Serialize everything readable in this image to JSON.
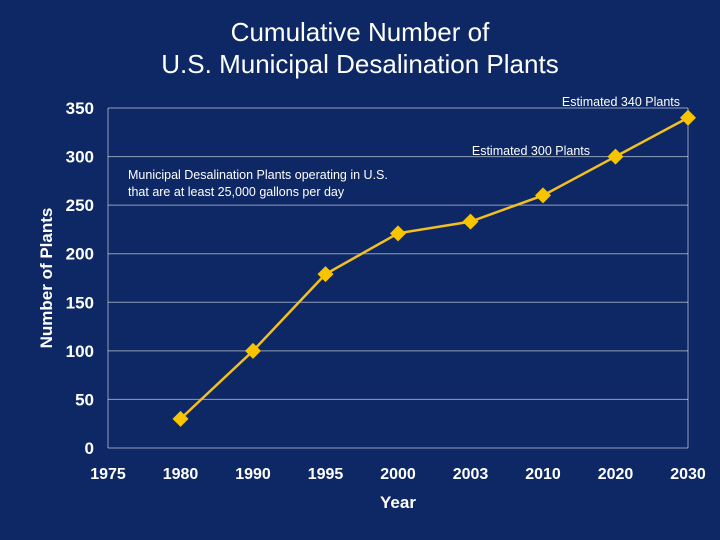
{
  "chart_data": {
    "type": "line",
    "title_lines": [
      "Cumulative Number of",
      "U.S. Municipal Desalination Plants"
    ],
    "xlabel": "Year",
    "ylabel": "Number of Plants",
    "ylim": [
      0,
      350
    ],
    "yticks": [
      "0",
      "50",
      "100",
      "150",
      "200",
      "250",
      "300",
      "350"
    ],
    "categories": [
      "1975",
      "1980",
      "1990",
      "1995",
      "2000",
      "2003",
      "2010",
      "2020",
      "2030"
    ],
    "series": [
      {
        "values": [
          null,
          30,
          100,
          179,
          221,
          233,
          260,
          300,
          340
        ]
      }
    ],
    "grid": true,
    "colors": {
      "background": "#0d2865",
      "line": "#f4c020",
      "marker": "#f8c400",
      "text": "#ffffff",
      "grid": "#ffffff"
    },
    "annotations": [
      {
        "lines": [
          "Municipal Desalination Plants operating in U.S.",
          "that are at least 25,000 gallons per day"
        ]
      },
      {
        "lines": [
          "Estimated 300 Plants"
        ]
      },
      {
        "lines": [
          "Estimated 340 Plants"
        ]
      }
    ]
  }
}
